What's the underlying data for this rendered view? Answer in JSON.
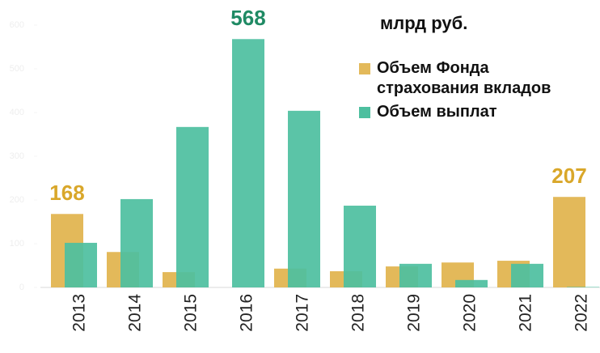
{
  "chart_data": {
    "type": "bar",
    "title": "млрд руб.",
    "categories": [
      "2013",
      "2014",
      "2015",
      "2016",
      "2017",
      "2018",
      "2019",
      "2020",
      "2021",
      "2022"
    ],
    "series": [
      {
        "name": "Объем Фонда страхования вкладов",
        "color": "#e3b95a",
        "values": [
          168,
          81,
          35,
          0,
          43,
          37,
          48,
          57,
          61,
          207
        ],
        "value_labels": [
          "168",
          null,
          null,
          null,
          null,
          null,
          null,
          null,
          null,
          "207"
        ]
      },
      {
        "name": "Объем выплат",
        "color": "#4dbf9f",
        "values": [
          102,
          202,
          367,
          568,
          404,
          187,
          54,
          17,
          54,
          1
        ],
        "value_labels": [
          null,
          null,
          null,
          "568",
          null,
          null,
          null,
          null,
          null,
          null
        ]
      }
    ],
    "ylim": [
      0,
      600
    ],
    "yticks": [
      0,
      100,
      200,
      300,
      400,
      500,
      600
    ]
  }
}
